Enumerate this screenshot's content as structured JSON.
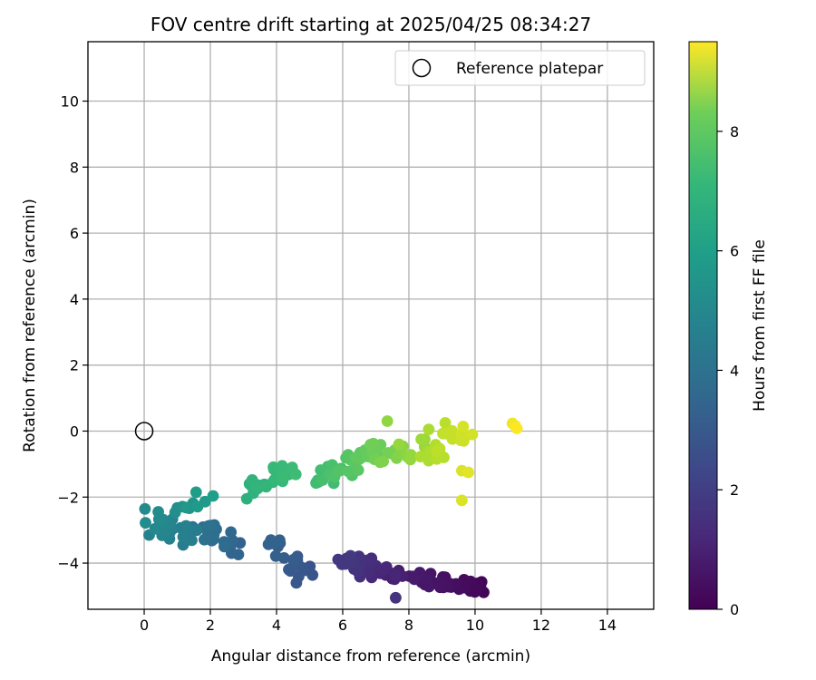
{
  "chart_data": {
    "type": "scatter",
    "title": "FOV centre drift starting at 2025/04/25 08:34:27",
    "xlabel": "Angular distance from reference (arcmin)",
    "ylabel": "Rotation from reference (arcmin)",
    "xlim": [
      -1.7,
      15.4
    ],
    "ylim": [
      -5.4,
      11.8
    ],
    "xticks": [
      0,
      2,
      4,
      6,
      8,
      10,
      12,
      14
    ],
    "yticks": [
      -4,
      -2,
      0,
      2,
      4,
      6,
      8,
      10
    ],
    "grid": true,
    "legend": {
      "placement": "top-right",
      "entries": [
        "Reference platepar"
      ]
    },
    "reference_point": {
      "x": 0,
      "y": 0,
      "label": "Reference platepar"
    },
    "colorbar": {
      "label": "Hours from first FF file",
      "min": 0,
      "max": 9.5,
      "ticks": [
        0,
        2,
        4,
        6,
        8
      ],
      "colormap": "viridis"
    },
    "clusters": [
      {
        "h0": 0.1,
        "h1": 0.7,
        "x0": 10.2,
        "x1": 8.1,
        "y0": -4.8,
        "y1": -4.4,
        "n": 40,
        "jx": 0.2,
        "jy": 0.22
      },
      {
        "h0": 0.8,
        "h1": 1.6,
        "x0": 7.7,
        "x1": 6.0,
        "y0": -4.5,
        "y1": -3.9,
        "n": 34,
        "jx": 0.25,
        "jy": 0.3
      },
      {
        "h0": 2.5,
        "h1": 3.0,
        "x0": 5.0,
        "x1": 3.8,
        "y0": -4.3,
        "y1": -3.4,
        "n": 20,
        "jx": 0.25,
        "jy": 0.3
      },
      {
        "h0": 3.0,
        "h1": 3.6,
        "x0": 2.8,
        "x1": 1.7,
        "y0": -3.5,
        "y1": -3.0,
        "n": 26,
        "jx": 0.25,
        "jy": 0.3
      },
      {
        "h0": 3.9,
        "h1": 4.6,
        "x0": 1.5,
        "x1": 0.2,
        "y0": -3.3,
        "y1": -2.6,
        "n": 28,
        "jx": 0.3,
        "jy": 0.3
      },
      {
        "h0": 4.6,
        "h1": 5.3,
        "x0": 0.9,
        "x1": 1.9,
        "y0": -2.5,
        "y1": -2.0,
        "n": 12,
        "jx": 0.3,
        "jy": 0.2
      },
      {
        "h0": 6.0,
        "h1": 6.5,
        "x0": 3.0,
        "x1": 4.5,
        "y0": -1.8,
        "y1": -1.1,
        "n": 22,
        "jx": 0.25,
        "jy": 0.25
      },
      {
        "h0": 6.5,
        "h1": 7.5,
        "x0": 5.4,
        "x1": 7.3,
        "y0": -1.4,
        "y1": -0.5,
        "n": 48,
        "jx": 0.3,
        "jy": 0.3
      },
      {
        "h0": 7.6,
        "h1": 8.2,
        "x0": 7.3,
        "x1": 8.6,
        "y0": -0.9,
        "y1": -0.3,
        "n": 14,
        "jx": 0.3,
        "jy": 0.3
      },
      {
        "h0": 8.3,
        "h1": 8.9,
        "x0": 8.6,
        "x1": 9.8,
        "y0": -0.7,
        "y1": 0.1,
        "n": 22,
        "jx": 0.25,
        "jy": 0.3
      },
      {
        "h0": 9.3,
        "h1": 9.5,
        "x0": 11.1,
        "x1": 11.3,
        "y0": 0.2,
        "y1": 0.05,
        "n": 3,
        "jx": 0.05,
        "jy": 0.05
      }
    ],
    "points": [
      {
        "x": 9.6,
        "y": -2.1,
        "h": 9.0
      },
      {
        "x": 9.6,
        "y": -1.2,
        "h": 9.0
      },
      {
        "x": 9.8,
        "y": -1.25,
        "h": 9.1
      },
      {
        "x": 7.35,
        "y": 0.3,
        "h": 7.9
      },
      {
        "x": 9.1,
        "y": 0.25,
        "h": 8.5
      },
      {
        "x": 8.6,
        "y": 0.05,
        "h": 8.3
      },
      {
        "x": 7.6,
        "y": -5.05,
        "h": 1.4
      },
      {
        "x": 7.7,
        "y": -0.4,
        "h": 8.0
      },
      {
        "x": 3.1,
        "y": -2.05,
        "h": 6.0
      },
      {
        "x": 4.6,
        "y": -4.6,
        "h": 2.6
      },
      {
        "x": 0.15,
        "y": -3.15,
        "h": 4.2
      }
    ]
  }
}
